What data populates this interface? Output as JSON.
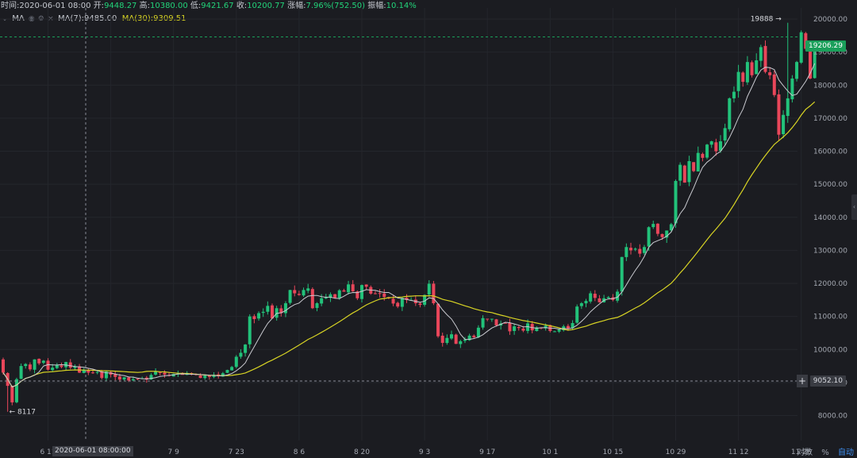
{
  "header": {
    "time_label": "时间:",
    "time_value": "2020-06-01 08:00",
    "open_label": "开:",
    "open_value": "9448.27",
    "high_label": "高:",
    "high_value": "10380.00",
    "low_label": "低:",
    "low_value": "9421.67",
    "close_label": "收:",
    "close_value": "10200.77",
    "change_label": "涨幅:",
    "change_value": "7.96%(752.50)",
    "amplitude_label": "振幅:",
    "amplitude_value": "10.14%"
  },
  "indicator": {
    "name": "MA",
    "ma7_label": "MA(7):",
    "ma7_value": "9485.00",
    "ma30_label": "MA(30):",
    "ma30_value": "9309.51"
  },
  "last_price": "19206.29",
  "crosshair": {
    "price": "9052.10",
    "date": "2020-06-01 08:00:00"
  },
  "bottom_controls": {
    "log": "对数",
    "percent": "%",
    "auto": "自动"
  },
  "colors": {
    "background": "#1b1c21",
    "up": "#22c27a",
    "down": "#e9465a",
    "ma7": "#c9cad0",
    "ma30": "#d8d424",
    "axis_text": "#a4a8b1",
    "grid": "#24262c"
  },
  "chart_data": {
    "type": "candlestick",
    "title": "",
    "xlabel": "",
    "ylabel": "",
    "ylim": [
      7300,
      20350
    ],
    "y_ticks": [
      8000,
      9000,
      10000,
      11000,
      12000,
      13000,
      14000,
      15000,
      16000,
      17000,
      18000,
      19000,
      20000
    ],
    "x_tick_labels": [
      "6 11",
      "6 25",
      "7 9",
      "7 23",
      "8 6",
      "8 20",
      "9 3",
      "9 17",
      "10 1",
      "10 15",
      "10 29",
      "11 12",
      "11 26"
    ],
    "x_ticks_at_index": [
      10,
      24,
      38,
      52,
      66,
      80,
      94,
      108,
      122,
      136,
      150,
      164,
      178
    ],
    "annotations": [
      {
        "text": "19888",
        "price": 19888
      },
      {
        "text": "8117",
        "price": 8117
      }
    ],
    "series": [
      {
        "name": "price",
        "ohlc_closes": [
          9300,
          8900,
          8400,
          9100,
          9500,
          9560,
          9400,
          9700,
          9580,
          9660,
          9390,
          9450,
          9530,
          9470,
          9620,
          9450,
          9480,
          9300,
          9390,
          9300,
          9300,
          9320,
          9140,
          9330,
          9240,
          9170,
          9090,
          9160,
          9060,
          9100,
          9110,
          9130,
          9090,
          9230,
          9330,
          9290,
          9240,
          9200,
          9260,
          9270,
          9240,
          9290,
          9250,
          9230,
          9140,
          9210,
          9170,
          9230,
          9190,
          9280,
          9380,
          9470,
          9780,
          9900,
          10150,
          11000,
          10920,
          11100,
          11140,
          11320,
          10940,
          11250,
          11100,
          11400,
          11800,
          11700,
          11650,
          11800,
          11850,
          11250,
          11400,
          11550,
          11570,
          11670,
          11560,
          11790,
          11750,
          11970,
          11760,
          11550,
          11950,
          11900,
          11690,
          11700,
          11700,
          11590,
          11550,
          11390,
          11300,
          11560,
          11500,
          11500,
          11400,
          11350,
          11650,
          11990,
          11400,
          10400,
          10200,
          10350,
          10460,
          10170,
          10250,
          10300,
          10420,
          10370,
          10660,
          10950,
          10920,
          10930,
          10730,
          10790,
          10790,
          10550,
          10700,
          10650,
          10570,
          10790,
          10580,
          10670,
          10640,
          10720,
          10560,
          10550,
          10600,
          10700,
          10630,
          10800,
          11300,
          11400,
          11470,
          11700,
          11560,
          11430,
          11550,
          11580,
          11500,
          11750,
          12800,
          13100,
          13000,
          13050,
          12900,
          13100,
          13700,
          13800,
          13500,
          13400,
          13600,
          13790,
          15100,
          15590,
          15050,
          15700,
          15400,
          15950,
          15800,
          16200,
          16300,
          16000,
          16300,
          16700,
          17600,
          17800,
          18400,
          18100,
          18700,
          18300,
          18750,
          19150,
          18400,
          18300,
          17700,
          16500,
          17100,
          17600,
          18200,
          18700,
          19600,
          19100,
          18200,
          19206
        ]
      },
      {
        "name": "MA(7)"
      },
      {
        "name": "MA(30)"
      }
    ]
  }
}
